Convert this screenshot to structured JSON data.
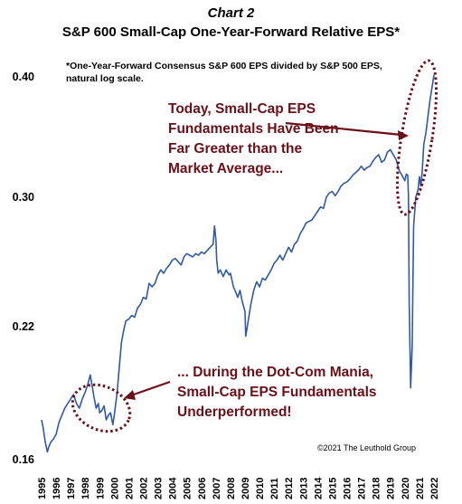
{
  "chart_data": {
    "type": "line",
    "title": "Chart 2",
    "subtitle": "S&P 600 Small-Cap One-Year-Forward Relative EPS*",
    "note_lines": [
      "*One-Year-Forward Consensus S&P 600 EPS divided by S&P 500 EPS,",
      "natural log scale."
    ],
    "y_scale": "log",
    "ylim": [
      0.16,
      0.4
    ],
    "y_ticks": [
      "0.40",
      "0.30",
      "0.22",
      "0.16"
    ],
    "x_ticks": [
      "1995",
      "1996",
      "1997",
      "1998",
      "1999",
      "2000",
      "2001",
      "2002",
      "2003",
      "2004",
      "2005",
      "2006",
      "2007",
      "2008",
      "2009",
      "2010",
      "2011",
      "2012",
      "2013",
      "2014",
      "2015",
      "2016",
      "2017",
      "2018",
      "2019",
      "2020",
      "2021",
      "2022"
    ],
    "xlim": [
      1995,
      2022.5
    ],
    "line_color": "#2e59a7",
    "annotation_color": "#6b0f18",
    "annotations": [
      {
        "lines": [
          "Today, Small-Cap EPS",
          "Fundamentals Have Been",
          "Far Greater than the",
          "Market Average..."
        ]
      },
      {
        "lines": [
          "... During the Dot-Com Mania,",
          "Small-Cap EPS Fundamentals",
          "Underperformed!"
        ]
      }
    ],
    "copyright": "©2021 The Leuthold Group",
    "series": [
      {
        "x": [
          1995.0,
          1995.1,
          1995.25,
          1995.4,
          1995.5,
          1995.65,
          1995.8,
          1996.0,
          1996.2,
          1996.4,
          1996.6,
          1996.8,
          1997.0,
          1997.2,
          1997.4,
          1997.6,
          1997.8,
          1998.0,
          1998.2,
          1998.35,
          1998.5,
          1998.6,
          1998.75,
          1998.9,
          1999.0,
          1999.15,
          1999.3,
          1999.45,
          1999.6,
          1999.75,
          1999.9,
          2000.0,
          2000.1,
          2000.2,
          2000.35,
          2000.5,
          2000.65,
          2000.8,
          2001.0,
          2001.2,
          2001.4,
          2001.6,
          2001.8,
          2002.0,
          2002.2,
          2002.4,
          2002.6,
          2002.8,
          2003.0,
          2003.2,
          2003.4,
          2003.6,
          2003.8,
          2004.0,
          2004.2,
          2004.4,
          2004.6,
          2004.8,
          2005.0,
          2005.2,
          2005.4,
          2005.6,
          2005.8,
          2006.0,
          2006.2,
          2006.4,
          2006.6,
          2006.8,
          2006.9,
          2007.0,
          2007.05,
          2007.15,
          2007.3,
          2007.5,
          2007.7,
          2007.9,
          2008.0,
          2008.2,
          2008.35,
          2008.5,
          2008.65,
          2008.8,
          2009.0,
          2009.05,
          2009.2,
          2009.4,
          2009.6,
          2009.8,
          2010.0,
          2010.2,
          2010.4,
          2010.6,
          2010.8,
          2011.0,
          2011.2,
          2011.4,
          2011.6,
          2011.8,
          2012.0,
          2012.2,
          2012.4,
          2012.6,
          2012.8,
          2013.0,
          2013.2,
          2013.4,
          2013.6,
          2013.8,
          2014.0,
          2014.2,
          2014.4,
          2014.6,
          2014.8,
          2015.0,
          2015.2,
          2015.4,
          2015.6,
          2015.8,
          2016.0,
          2016.2,
          2016.4,
          2016.6,
          2016.8,
          2017.0,
          2017.2,
          2017.4,
          2017.6,
          2017.8,
          2018.0,
          2018.2,
          2018.4,
          2018.6,
          2018.8,
          2019.0,
          2019.2,
          2019.4,
          2019.6,
          2019.8,
          2020.0,
          2020.1,
          2020.2,
          2020.25,
          2020.3,
          2020.4,
          2020.5,
          2020.6,
          2020.75,
          2020.9,
          2021.0,
          2021.1,
          2021.2,
          2021.3,
          2021.45,
          2021.6,
          2021.75,
          2021.9,
          2022.0
        ],
        "y": [
          0.176,
          0.173,
          0.167,
          0.163,
          0.165,
          0.167,
          0.168,
          0.17,
          0.175,
          0.178,
          0.181,
          0.183,
          0.185,
          0.187,
          0.183,
          0.181,
          0.185,
          0.188,
          0.192,
          0.196,
          0.19,
          0.186,
          0.181,
          0.183,
          0.179,
          0.18,
          0.182,
          0.176,
          0.178,
          0.179,
          0.174,
          0.178,
          0.183,
          0.188,
          0.2,
          0.212,
          0.218,
          0.223,
          0.224,
          0.226,
          0.225,
          0.23,
          0.232,
          0.236,
          0.235,
          0.244,
          0.242,
          0.244,
          0.249,
          0.252,
          0.25,
          0.253,
          0.255,
          0.258,
          0.259,
          0.257,
          0.255,
          0.26,
          0.262,
          0.261,
          0.26,
          0.262,
          0.261,
          0.263,
          0.262,
          0.264,
          0.266,
          0.268,
          0.28,
          0.27,
          0.258,
          0.25,
          0.252,
          0.248,
          0.252,
          0.249,
          0.25,
          0.242,
          0.239,
          0.236,
          0.24,
          0.234,
          0.228,
          0.215,
          0.222,
          0.232,
          0.24,
          0.245,
          0.242,
          0.247,
          0.246,
          0.249,
          0.252,
          0.256,
          0.258,
          0.261,
          0.258,
          0.262,
          0.266,
          0.263,
          0.268,
          0.27,
          0.275,
          0.278,
          0.282,
          0.283,
          0.284,
          0.287,
          0.29,
          0.293,
          0.292,
          0.3,
          0.303,
          0.304,
          0.301,
          0.304,
          0.308,
          0.31,
          0.311,
          0.313,
          0.316,
          0.318,
          0.32,
          0.323,
          0.32,
          0.322,
          0.323,
          0.327,
          0.33,
          0.332,
          0.326,
          0.328,
          0.334,
          0.336,
          0.332,
          0.328,
          0.32,
          0.316,
          0.312,
          0.317,
          0.316,
          0.3,
          0.233,
          0.19,
          0.21,
          0.28,
          0.3,
          0.305,
          0.315,
          0.308,
          0.32,
          0.34,
          0.35,
          0.365,
          0.38,
          0.393,
          0.402
        ]
      }
    ]
  }
}
